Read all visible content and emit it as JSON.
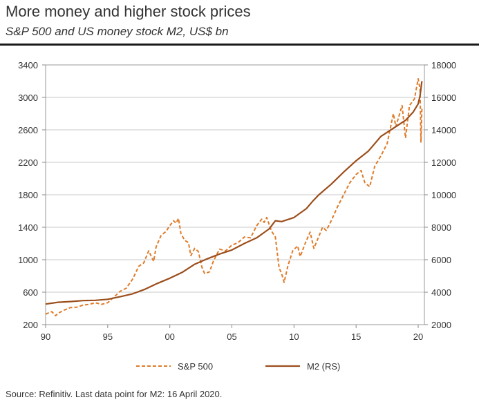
{
  "title": "More money and higher stock prices",
  "subtitle": "S&P 500 and US money stock M2, US$ bn",
  "source": "Source: Refinitiv. Last data point for M2: 16 April 2020.",
  "colors": {
    "sp500": "#e07b28",
    "m2": "#9b4e1c",
    "frame": "#999999"
  },
  "chart_data": {
    "type": "line",
    "title": "More money and higher stock prices",
    "subtitle": "S&P 500 and US money stock M2, US$ bn",
    "grid": true,
    "legend_position": "bottom",
    "x_axis": {
      "min": 1990,
      "max": 2020.5,
      "ticks": [
        1990,
        1995,
        2000,
        2005,
        2010,
        2015,
        2020
      ],
      "tick_labels": [
        "90",
        "95",
        "00",
        "05",
        "10",
        "15",
        "20"
      ]
    },
    "y_left": {
      "min": 200,
      "max": 3400,
      "ticks": [
        200,
        600,
        1000,
        1400,
        1800,
        2200,
        2600,
        3000,
        3400
      ],
      "tick_labels": [
        "200",
        "600",
        "1000",
        "1400",
        "1800",
        "2200",
        "2600",
        "3000",
        "3400"
      ]
    },
    "y_right": {
      "min": 2000,
      "max": 18000,
      "ticks": [
        2000,
        4000,
        6000,
        8000,
        10000,
        12000,
        14000,
        16000,
        18000
      ],
      "tick_labels": [
        "2000",
        "4000",
        "6000",
        "8000",
        "10000",
        "12000",
        "14000",
        "16000",
        "18000"
      ]
    },
    "series": [
      {
        "name": "S&P 500",
        "axis": "left",
        "style": "dashed",
        "points": [
          [
            1990.0,
            330
          ],
          [
            1990.5,
            360
          ],
          [
            1990.8,
            310
          ],
          [
            1991.0,
            340
          ],
          [
            1991.5,
            380
          ],
          [
            1992.0,
            410
          ],
          [
            1992.5,
            415
          ],
          [
            1993.0,
            440
          ],
          [
            1993.5,
            450
          ],
          [
            1994.0,
            470
          ],
          [
            1994.5,
            450
          ],
          [
            1995.0,
            470
          ],
          [
            1995.5,
            540
          ],
          [
            1996.0,
            610
          ],
          [
            1996.5,
            650
          ],
          [
            1997.0,
            760
          ],
          [
            1997.5,
            920
          ],
          [
            1997.9,
            960
          ],
          [
            1998.3,
            1110
          ],
          [
            1998.7,
            980
          ],
          [
            1998.9,
            1160
          ],
          [
            1999.3,
            1300
          ],
          [
            1999.7,
            1350
          ],
          [
            2000.0,
            1420
          ],
          [
            2000.3,
            1480
          ],
          [
            2000.5,
            1450
          ],
          [
            2000.7,
            1510
          ],
          [
            2000.9,
            1320
          ],
          [
            2001.2,
            1240
          ],
          [
            2001.5,
            1210
          ],
          [
            2001.7,
            1050
          ],
          [
            2002.0,
            1140
          ],
          [
            2002.3,
            1100
          ],
          [
            2002.6,
            900
          ],
          [
            2002.8,
            830
          ],
          [
            2003.2,
            850
          ],
          [
            2003.5,
            980
          ],
          [
            2004.0,
            1130
          ],
          [
            2004.5,
            1110
          ],
          [
            2005.0,
            1180
          ],
          [
            2005.5,
            1210
          ],
          [
            2006.0,
            1280
          ],
          [
            2006.5,
            1270
          ],
          [
            2007.0,
            1420
          ],
          [
            2007.4,
            1500
          ],
          [
            2007.6,
            1460
          ],
          [
            2007.8,
            1520
          ],
          [
            2008.2,
            1350
          ],
          [
            2008.5,
            1280
          ],
          [
            2008.8,
            900
          ],
          [
            2009.0,
            830
          ],
          [
            2009.2,
            720
          ],
          [
            2009.5,
            920
          ],
          [
            2009.9,
            1110
          ],
          [
            2010.3,
            1170
          ],
          [
            2010.5,
            1040
          ],
          [
            2010.9,
            1200
          ],
          [
            2011.3,
            1340
          ],
          [
            2011.6,
            1140
          ],
          [
            2011.9,
            1250
          ],
          [
            2012.3,
            1400
          ],
          [
            2012.6,
            1360
          ],
          [
            2013.0,
            1480
          ],
          [
            2013.5,
            1650
          ],
          [
            2014.0,
            1800
          ],
          [
            2014.5,
            1950
          ],
          [
            2015.0,
            2050
          ],
          [
            2015.4,
            2100
          ],
          [
            2015.7,
            1950
          ],
          [
            2016.1,
            1900
          ],
          [
            2016.5,
            2150
          ],
          [
            2017.0,
            2280
          ],
          [
            2017.5,
            2430
          ],
          [
            2018.0,
            2800
          ],
          [
            2018.2,
            2640
          ],
          [
            2018.7,
            2900
          ],
          [
            2018.98,
            2500
          ],
          [
            2019.3,
            2900
          ],
          [
            2019.7,
            2980
          ],
          [
            2020.0,
            3230
          ],
          [
            2020.15,
            3100
          ],
          [
            2020.22,
            2450
          ],
          [
            2020.3,
            2870
          ]
        ]
      },
      {
        "name": "M2 (RS)",
        "axis": "right",
        "style": "solid",
        "points": [
          [
            1990.0,
            3270
          ],
          [
            1991.0,
            3380
          ],
          [
            1992.0,
            3420
          ],
          [
            1993.0,
            3480
          ],
          [
            1994.0,
            3500
          ],
          [
            1995.0,
            3560
          ],
          [
            1996.0,
            3720
          ],
          [
            1997.0,
            3900
          ],
          [
            1998.0,
            4180
          ],
          [
            1999.0,
            4540
          ],
          [
            2000.0,
            4860
          ],
          [
            2001.0,
            5220
          ],
          [
            2002.0,
            5720
          ],
          [
            2003.0,
            6050
          ],
          [
            2004.0,
            6350
          ],
          [
            2005.0,
            6600
          ],
          [
            2006.0,
            7000
          ],
          [
            2007.0,
            7350
          ],
          [
            2008.0,
            7900
          ],
          [
            2008.5,
            8400
          ],
          [
            2009.0,
            8350
          ],
          [
            2010.0,
            8600
          ],
          [
            2011.0,
            9150
          ],
          [
            2011.5,
            9600
          ],
          [
            2012.0,
            10000
          ],
          [
            2013.0,
            10650
          ],
          [
            2014.0,
            11400
          ],
          [
            2015.0,
            12100
          ],
          [
            2016.0,
            12700
          ],
          [
            2017.0,
            13600
          ],
          [
            2018.0,
            14100
          ],
          [
            2019.0,
            14600
          ],
          [
            2019.6,
            15100
          ],
          [
            2020.0,
            15600
          ],
          [
            2020.15,
            16100
          ],
          [
            2020.3,
            17000
          ]
        ]
      }
    ]
  }
}
